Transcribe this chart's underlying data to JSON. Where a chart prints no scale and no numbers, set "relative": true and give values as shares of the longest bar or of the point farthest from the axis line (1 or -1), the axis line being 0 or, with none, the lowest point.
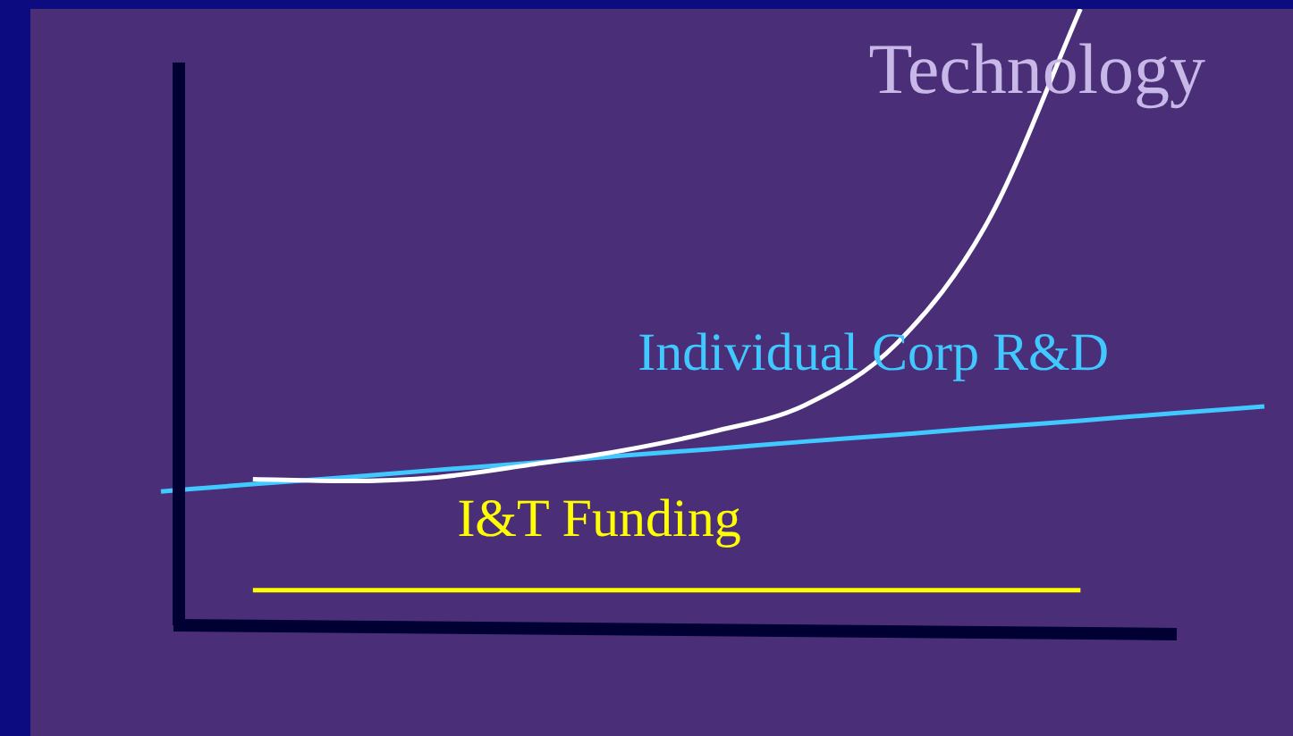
{
  "chart_data": {
    "type": "line",
    "relative": true,
    "categories": [
      null,
      null,
      null,
      null,
      null,
      null,
      null,
      null,
      null,
      null,
      null,
      null,
      null
    ],
    "series": [
      {
        "name": "Technology",
        "color": "#ffffff",
        "values": [
          null,
          0.237,
          0.234,
          0.24,
          0.26,
          0.283,
          0.314,
          0.357,
          0.457,
          0.657,
          1,
          null,
          null
        ]
      },
      {
        "name": "Individual Corp R&D",
        "color": "#40c8ff",
        "values": [
          0.217,
          0.229,
          0.24,
          0.252,
          0.263,
          0.275,
          0.286,
          0.298,
          0.309,
          0.321,
          0.332,
          0.344,
          0.355
        ]
      },
      {
        "name": "I&T Funding",
        "color": "#ffff00",
        "values": [
          null,
          0.057,
          0.057,
          0.057,
          0.057,
          0.057,
          0.057,
          0.057,
          0.057,
          0.057,
          0.057,
          null,
          null
        ]
      }
    ],
    "grid": false,
    "legend": false,
    "marker": "none",
    "line_style": "solid"
  }
}
